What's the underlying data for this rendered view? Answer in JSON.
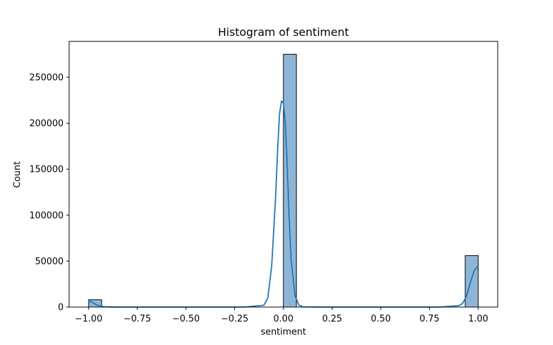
{
  "chart_data": {
    "type": "bar",
    "title": "Histogram of sentiment",
    "xlabel": "sentiment",
    "ylabel": "Count",
    "xlim": [
      -1.1,
      1.1
    ],
    "ylim": [
      0,
      289000
    ],
    "xticks": [
      -1.0,
      -0.75,
      -0.5,
      -0.25,
      0.0,
      0.25,
      0.5,
      0.75,
      1.0
    ],
    "xtick_labels": [
      "−1.00",
      "−0.75",
      "−0.50",
      "−0.25",
      "0.00",
      "0.25",
      "0.50",
      "0.75",
      "1.00"
    ],
    "yticks": [
      0,
      50000,
      100000,
      150000,
      200000,
      250000
    ],
    "ytick_labels": [
      "0",
      "50000",
      "100000",
      "150000",
      "200000",
      "250000"
    ],
    "bins": [
      {
        "x0": -1.0,
        "x1": -0.9333,
        "count": 8000
      },
      {
        "x0": 0.0,
        "x1": 0.0667,
        "count": 275000
      },
      {
        "x0": 0.9333,
        "x1": 1.0,
        "count": 56000
      }
    ],
    "kde": {
      "x": [
        -1.0,
        -0.98,
        -0.96,
        -0.94,
        -0.92,
        -0.9,
        -0.85,
        -0.8,
        -0.5,
        -0.2,
        -0.1,
        -0.08,
        -0.06,
        -0.04,
        -0.03,
        -0.02,
        -0.01,
        0.0,
        0.01,
        0.02,
        0.03,
        0.04,
        0.06,
        0.08,
        0.1,
        0.2,
        0.5,
        0.8,
        0.9,
        0.92,
        0.94,
        0.96,
        0.98,
        1.0
      ],
      "y": [
        7000,
        5000,
        2500,
        1000,
        400,
        150,
        20,
        0,
        0,
        0,
        2000,
        10000,
        45000,
        120000,
        170000,
        210000,
        224000,
        222000,
        200000,
        150000,
        95000,
        50000,
        12000,
        2000,
        200,
        0,
        0,
        0,
        1500,
        4000,
        12000,
        27000,
        40000,
        45000
      ]
    },
    "colors": {
      "bar_fill": "#8fb5d6",
      "bar_edge": "#000000",
      "kde": "#1f77b4"
    },
    "grid": false
  }
}
